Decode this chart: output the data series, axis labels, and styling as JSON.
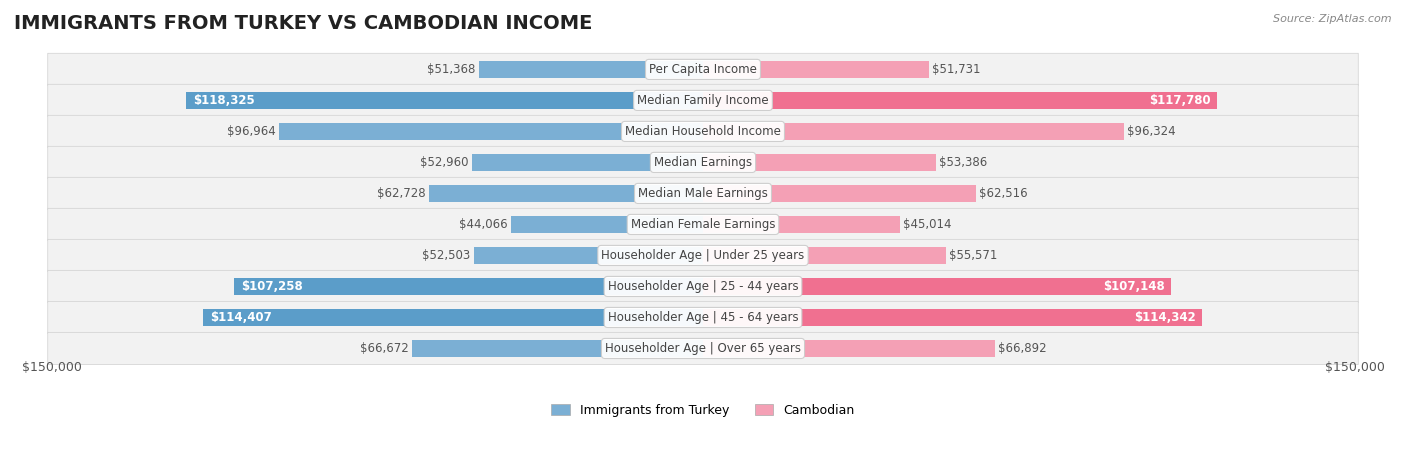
{
  "title": "IMMIGRANTS FROM TURKEY VS CAMBODIAN INCOME",
  "source": "Source: ZipAtlas.com",
  "categories": [
    "Per Capita Income",
    "Median Family Income",
    "Median Household Income",
    "Median Earnings",
    "Median Male Earnings",
    "Median Female Earnings",
    "Householder Age | Under 25 years",
    "Householder Age | 25 - 44 years",
    "Householder Age | 45 - 64 years",
    "Householder Age | Over 65 years"
  ],
  "turkey_values": [
    51368,
    118325,
    96964,
    52960,
    62728,
    44066,
    52503,
    107258,
    114407,
    66672
  ],
  "cambodian_values": [
    51731,
    117780,
    96324,
    53386,
    62516,
    45014,
    55571,
    107148,
    114342,
    66892
  ],
  "turkey_labels": [
    "$51,368",
    "$118,325",
    "$96,964",
    "$52,960",
    "$62,728",
    "$44,066",
    "$52,503",
    "$107,258",
    "$114,407",
    "$66,672"
  ],
  "cambodian_labels": [
    "$51,731",
    "$117,780",
    "$96,324",
    "$53,386",
    "$62,516",
    "$45,014",
    "$55,571",
    "$107,148",
    "$114,342",
    "$66,892"
  ],
  "turkey_color": "#7bafd4",
  "cambodian_color": "#f4a0b5",
  "turkey_color_strong": "#5b9dc9",
  "cambodian_color_strong": "#f07090",
  "max_value": 150000,
  "xlabel": "$150,000",
  "xlabel_right": "$150,000",
  "legend_turkey": "Immigrants from Turkey",
  "legend_cambodian": "Cambodian",
  "bg_color": "#f5f5f5",
  "row_bg": "#ececec",
  "title_fontsize": 14,
  "label_fontsize": 8.5,
  "category_fontsize": 8.5
}
